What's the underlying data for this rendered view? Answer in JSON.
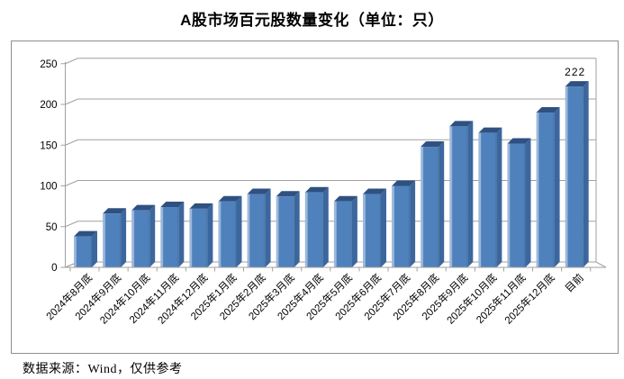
{
  "page": {
    "title": "A股市场百元股数量变化（单位：只）",
    "footer": "数据来源：Wind，仅供参考"
  },
  "chart_data": {
    "type": "bar",
    "style": "3d-column",
    "title": "A股市场百元股数量变化（单位：只）",
    "unit": "只",
    "categories": [
      "2024年8月底",
      "2024年9月底",
      "2024年10月底",
      "2024年11月底",
      "2024年12月底",
      "2025年1月底",
      "2025年2月底",
      "2025年3月底",
      "2025年4月底",
      "2025年5月底",
      "2025年6月底",
      "2025年7月底",
      "2025年8月底",
      "2025年9月底",
      "2025年10月底",
      "2025年11月底",
      "2025年12月底",
      "目前"
    ],
    "values": [
      38,
      66,
      70,
      74,
      72,
      81,
      90,
      87,
      92,
      81,
      90,
      100,
      148,
      173,
      165,
      152,
      190,
      222
    ],
    "ylim": [
      0,
      250
    ],
    "yticks": [
      0,
      50,
      100,
      150,
      200,
      250
    ],
    "grid": true,
    "legend": false,
    "data_labels": [
      {
        "category": "目前",
        "label": "222"
      }
    ],
    "colors": {
      "bar_front": "#4f81bd",
      "bar_front_highlight": "#9db8da",
      "bar_side": "#3c669e",
      "bar_top": "#2f5181",
      "gridline": "#a0a0a0",
      "axis": "#a0a0a0",
      "frame_border": "#8e8e8e",
      "text": "#000000",
      "background": "#ffffff"
    }
  }
}
